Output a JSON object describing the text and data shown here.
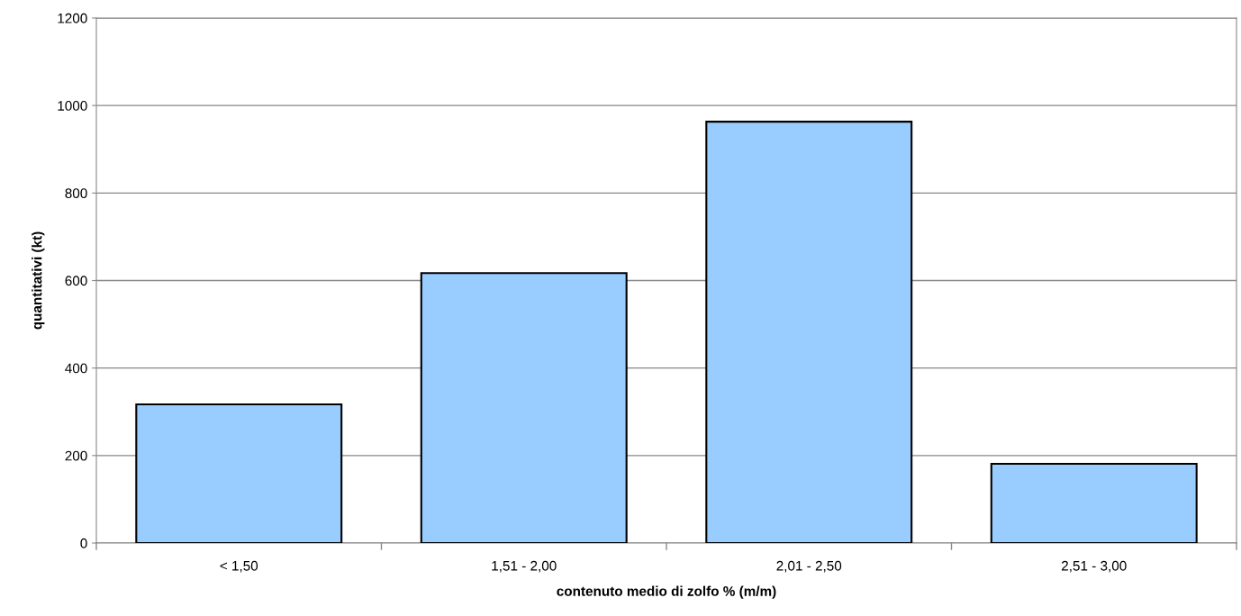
{
  "chart_data": {
    "type": "bar",
    "xlabel": "contenuto medio di zolfo % (m/m)",
    "ylabel": "quantitativi (kt)",
    "categories": [
      "< 1,50",
      "1,51 - 2,00",
      "2,01 - 2,50",
      "2,51 - 3,00"
    ],
    "values": [
      317,
      617,
      963,
      181
    ],
    "color": "#99ccff",
    "ylim": [
      0,
      1200
    ],
    "yticks": [
      0,
      200,
      400,
      600,
      800,
      1000,
      1200
    ],
    "grid": "y"
  }
}
